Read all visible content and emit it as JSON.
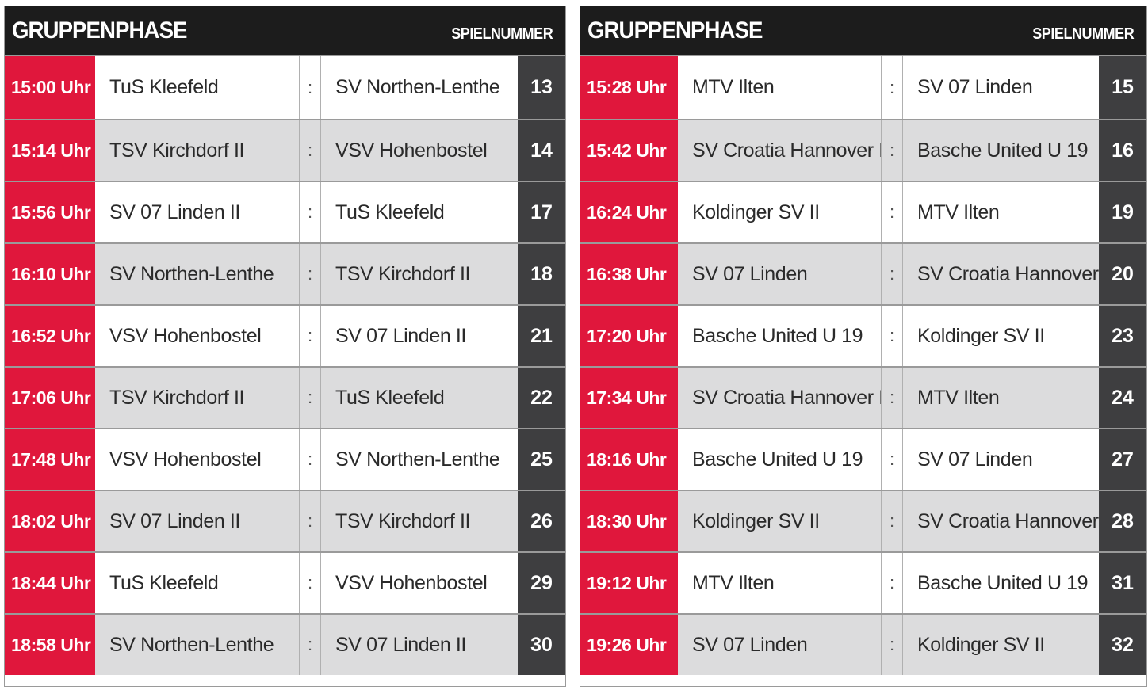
{
  "panels": [
    {
      "title": "GRUPPENPHASE",
      "subtitle": "SPIELNUMMER",
      "matches": [
        {
          "time": "15:00 Uhr",
          "home": "TuS Kleefeld",
          "sep": ":",
          "away": "SV Northen-Lenthe",
          "num": "13"
        },
        {
          "time": "15:14 Uhr",
          "home": "TSV Kirchdorf II",
          "sep": ":",
          "away": "VSV Hohenbostel",
          "num": "14"
        },
        {
          "time": "15:56 Uhr",
          "home": "SV 07 Linden II",
          "sep": ":",
          "away": "TuS Kleefeld",
          "num": "17"
        },
        {
          "time": "16:10 Uhr",
          "home": "SV Northen-Lenthe",
          "sep": ":",
          "away": "TSV Kirchdorf II",
          "num": "18"
        },
        {
          "time": "16:52 Uhr",
          "home": "VSV Hohenbostel",
          "sep": ":",
          "away": "SV 07 Linden II",
          "num": "21"
        },
        {
          "time": "17:06 Uhr",
          "home": "TSV Kirchdorf II",
          "sep": ":",
          "away": "TuS Kleefeld",
          "num": "22"
        },
        {
          "time": "17:48 Uhr",
          "home": "VSV Hohenbostel",
          "sep": ":",
          "away": "SV Northen-Lenthe",
          "num": "25"
        },
        {
          "time": "18:02 Uhr",
          "home": "SV 07 Linden II",
          "sep": ":",
          "away": "TSV Kirchdorf II",
          "num": "26"
        },
        {
          "time": "18:44 Uhr",
          "home": "TuS Kleefeld",
          "sep": ":",
          "away": "VSV Hohenbostel",
          "num": "29"
        },
        {
          "time": "18:58 Uhr",
          "home": "SV Northen-Lenthe",
          "sep": ":",
          "away": "SV 07 Linden II",
          "num": "30"
        }
      ]
    },
    {
      "title": "GRUPPENPHASE",
      "subtitle": "SPIELNUMMER",
      "matches": [
        {
          "time": "15:28 Uhr",
          "home": "MTV Ilten",
          "sep": ":",
          "away": "SV 07 Linden",
          "num": "15"
        },
        {
          "time": "15:42 Uhr",
          "home": "SV Croatia Hannover II",
          "sep": ":",
          "away": "Basche United U 19",
          "num": "16"
        },
        {
          "time": "16:24 Uhr",
          "home": "Koldinger SV II",
          "sep": ":",
          "away": "MTV Ilten",
          "num": "19"
        },
        {
          "time": "16:38 Uhr",
          "home": "SV 07 Linden",
          "sep": ":",
          "away": "SV Croatia Hannover II",
          "num": "20"
        },
        {
          "time": "17:20 Uhr",
          "home": "Basche United U 19",
          "sep": ":",
          "away": "Koldinger SV II",
          "num": "23"
        },
        {
          "time": "17:34 Uhr",
          "home": "SV Croatia Hannover II",
          "sep": ":",
          "away": "MTV Ilten",
          "num": "24"
        },
        {
          "time": "18:16 Uhr",
          "home": "Basche United U 19",
          "sep": ":",
          "away": "SV 07 Linden",
          "num": "27"
        },
        {
          "time": "18:30 Uhr",
          "home": "Koldinger SV II",
          "sep": ":",
          "away": "SV Croatia Hannover II",
          "num": "28"
        },
        {
          "time": "19:12 Uhr",
          "home": "MTV Ilten",
          "sep": ":",
          "away": "Basche United U 19",
          "num": "31"
        },
        {
          "time": "19:26 Uhr",
          "home": "SV 07 Linden",
          "sep": ":",
          "away": "Koldinger SV II",
          "num": "32"
        }
      ]
    }
  ],
  "colors": {
    "header_bg": "#1c1c1c",
    "time_bg": "#e0173c",
    "number_bg": "#3e3e40",
    "row_alt_bg": "#dcdcdd"
  }
}
